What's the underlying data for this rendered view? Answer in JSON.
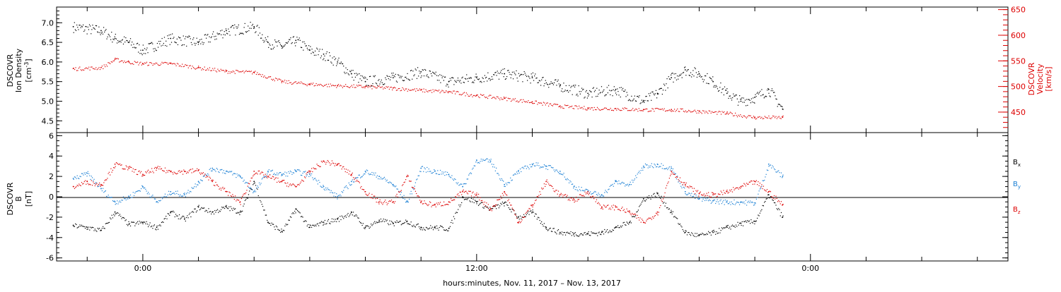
{
  "chart_data": [
    {
      "type": "scatter",
      "panel": "top",
      "x_unit": "hours relative to 00:00",
      "y_left": {
        "label_lines": [
          "DSCOVR",
          "Ion Density"
        ],
        "unit_base": "[cm",
        "unit_exp": "-3",
        "unit_close": "]",
        "ylim": [
          4.2,
          7.4
        ],
        "ticks": [
          "4.5",
          "5.0",
          "5.5",
          "6.0",
          "6.5",
          "7.0"
        ],
        "tick_values": [
          4.5,
          5.0,
          5.5,
          6.0,
          6.5,
          7.0
        ],
        "color": "#000000"
      },
      "y_right": {
        "label_lines": [
          "DSCOVR",
          "Velocity",
          "[km/s]"
        ],
        "ylim": [
          410,
          655
        ],
        "ticks": [
          "450",
          "500",
          "550",
          "600",
          "650"
        ],
        "tick_values": [
          450,
          500,
          550,
          600,
          650
        ],
        "color": "#dd0000"
      },
      "series": [
        {
          "axis": "left",
          "color": "#000000",
          "x": [
            -2.5,
            -1.5,
            -1.0,
            -0.5,
            0.0,
            1.0,
            2.0,
            3.0,
            4.0,
            4.5,
            5.0,
            5.5,
            6.0,
            6.5,
            7.0,
            7.5,
            8.0,
            9.0,
            10.0,
            11.0,
            12.0,
            13.0,
            14.0,
            15.0,
            16.0,
            17.0,
            18.0,
            18.5,
            19.0,
            19.5,
            20.0,
            20.5,
            21.0,
            21.5,
            22.0,
            22.5,
            23.0
          ],
          "y": [
            6.9,
            6.8,
            6.6,
            6.5,
            6.3,
            6.6,
            6.5,
            6.8,
            6.9,
            6.5,
            6.4,
            6.55,
            6.3,
            6.2,
            6.0,
            5.7,
            5.5,
            5.6,
            5.75,
            5.5,
            5.6,
            5.7,
            5.6,
            5.4,
            5.2,
            5.3,
            5.0,
            5.2,
            5.6,
            5.8,
            5.7,
            5.5,
            5.2,
            5.0,
            5.1,
            5.3,
            4.8
          ]
        },
        {
          "axis": "right",
          "color": "#dd0000",
          "x": [
            -2.5,
            -1.5,
            -1.0,
            -0.5,
            0.0,
            1.0,
            2.0,
            3.0,
            4.0,
            5.0,
            6.0,
            7.0,
            8.0,
            9.0,
            10.0,
            11.0,
            12.0,
            13.0,
            14.0,
            15.0,
            16.0,
            17.0,
            18.0,
            19.0,
            20.0,
            21.0,
            22.0,
            23.0
          ],
          "y": [
            535,
            537,
            553,
            548,
            545,
            545,
            537,
            530,
            528,
            510,
            505,
            502,
            500,
            497,
            493,
            490,
            483,
            477,
            470,
            462,
            458,
            457,
            455,
            455,
            452,
            448,
            440,
            440
          ]
        }
      ]
    },
    {
      "type": "scatter",
      "panel": "bottom",
      "y_left": {
        "label_lines": [
          "DSCOVR",
          "B",
          "[nT]"
        ],
        "ylim": [
          -6.3,
          6.3
        ],
        "ticks": [
          "-6",
          "-4",
          "-2",
          "0",
          "2",
          "4",
          "6"
        ],
        "tick_values": [
          -6,
          -4,
          -2,
          0,
          2,
          4,
          6
        ]
      },
      "legend": {
        "placement": "right",
        "entries": [
          {
            "base": "B",
            "sub": "x",
            "color": "#000000"
          },
          {
            "base": "B",
            "sub": "y",
            "color": "#1a7fd4"
          },
          {
            "base": "B",
            "sub": "z",
            "color": "#dd0000"
          }
        ]
      },
      "series": [
        {
          "name": "Bx",
          "color": "#000000",
          "x": [
            -2.5,
            -2.0,
            -1.5,
            -1.0,
            -0.5,
            0.0,
            0.5,
            1.0,
            1.5,
            2.0,
            2.5,
            3.0,
            3.5,
            4.0,
            4.5,
            5.0,
            5.5,
            6.0,
            6.5,
            7.0,
            7.5,
            8.0,
            8.5,
            9.0,
            9.5,
            10.0,
            10.5,
            11.0,
            11.5,
            12.0,
            12.5,
            13.0,
            13.5,
            14.0,
            14.5,
            15.0,
            15.5,
            16.0,
            16.5,
            17.0,
            17.5,
            18.0,
            18.5,
            19.0,
            19.5,
            20.0,
            20.5,
            21.0,
            21.5,
            22.0,
            22.5,
            23.0
          ],
          "y": [
            -2.8,
            -3.0,
            -3.3,
            -1.5,
            -2.7,
            -2.5,
            -3.0,
            -1.5,
            -2.2,
            -1.0,
            -1.5,
            -1.0,
            -1.5,
            1.5,
            -2.5,
            -3.4,
            -1.2,
            -3.0,
            -2.5,
            -2.2,
            -1.5,
            -3.0,
            -2.3,
            -2.6,
            -2.4,
            -3.0,
            -3.0,
            -3.1,
            0.0,
            -0.5,
            -1.2,
            -0.6,
            -2.0,
            -1.5,
            -3.0,
            -3.5,
            -3.6,
            -3.6,
            -3.5,
            -3.0,
            -2.5,
            -0.2,
            0.3,
            -1.5,
            -3.5,
            -3.8,
            -3.5,
            -3.0,
            -2.6,
            -2.4,
            0.2,
            -2.0
          ]
        },
        {
          "name": "By",
          "color": "#1a7fd4",
          "x": [
            -2.5,
            -2.0,
            -1.5,
            -1.0,
            -0.5,
            0.0,
            0.5,
            1.0,
            1.5,
            2.0,
            2.5,
            3.0,
            3.5,
            4.0,
            4.5,
            5.0,
            5.5,
            6.0,
            6.5,
            7.0,
            7.5,
            8.0,
            8.5,
            9.0,
            9.5,
            10.0,
            10.5,
            11.0,
            11.5,
            12.0,
            12.5,
            13.0,
            13.5,
            14.0,
            14.5,
            15.0,
            15.5,
            16.0,
            16.5,
            17.0,
            17.5,
            18.0,
            18.5,
            19.0,
            19.5,
            20.0,
            20.5,
            21.0,
            21.5,
            22.0,
            22.5,
            23.0
          ],
          "y": [
            1.8,
            2.3,
            0.8,
            -0.5,
            0.0,
            1.0,
            -0.5,
            0.5,
            0.2,
            1.5,
            2.8,
            2.5,
            2.0,
            0.5,
            2.5,
            2.2,
            2.5,
            2.2,
            1.0,
            0.0,
            1.5,
            2.5,
            2.0,
            1.2,
            -0.5,
            2.8,
            2.5,
            2.2,
            1.0,
            3.6,
            3.5,
            1.2,
            2.5,
            3.2,
            3.0,
            2.5,
            1.0,
            0.5,
            0.2,
            1.5,
            1.2,
            3.0,
            3.2,
            2.8,
            0.5,
            -0.2,
            -0.4,
            -0.5,
            -0.5,
            -0.6,
            3.2,
            2.0
          ]
        },
        {
          "name": "Bz",
          "color": "#dd0000",
          "x": [
            -2.5,
            -2.0,
            -1.5,
            -1.0,
            -0.5,
            0.0,
            0.5,
            1.0,
            1.5,
            2.0,
            2.5,
            3.0,
            3.5,
            4.0,
            4.5,
            5.0,
            5.5,
            6.0,
            6.5,
            7.0,
            7.5,
            8.0,
            8.5,
            9.0,
            9.5,
            10.0,
            10.5,
            11.0,
            11.5,
            12.0,
            12.5,
            13.0,
            13.5,
            14.0,
            14.5,
            15.0,
            15.5,
            16.0,
            16.5,
            17.0,
            17.5,
            18.0,
            18.5,
            19.0,
            19.5,
            20.0,
            20.5,
            21.0,
            21.5,
            22.0,
            22.5,
            23.0
          ],
          "y": [
            1.0,
            1.5,
            1.2,
            3.2,
            2.8,
            2.2,
            2.8,
            2.5,
            2.5,
            2.6,
            1.5,
            0.5,
            -0.5,
            2.5,
            2.0,
            1.5,
            1.0,
            2.5,
            3.5,
            3.2,
            2.2,
            0.5,
            -0.5,
            -0.5,
            2.0,
            -0.5,
            -0.8,
            -0.5,
            0.5,
            0.2,
            -1.2,
            0.5,
            -2.5,
            -0.8,
            1.5,
            0.2,
            -0.3,
            0.5,
            -1.0,
            -1.0,
            -1.5,
            -2.5,
            -1.5,
            2.5,
            1.2,
            0.3,
            0.2,
            0.5,
            1.0,
            1.5,
            0.5,
            -0.8
          ]
        }
      ]
    }
  ],
  "x_axis": {
    "xlim": [
      -3.1,
      31.1
    ],
    "labels": [
      {
        "x": 0,
        "text": "0:00"
      },
      {
        "x": 12,
        "text": "12:00"
      },
      {
        "x": 24,
        "text": "0:00"
      }
    ],
    "minor_step_hours": 2,
    "title": "hours:minutes, Nov. 11, 2017 – Nov. 13, 2017"
  }
}
